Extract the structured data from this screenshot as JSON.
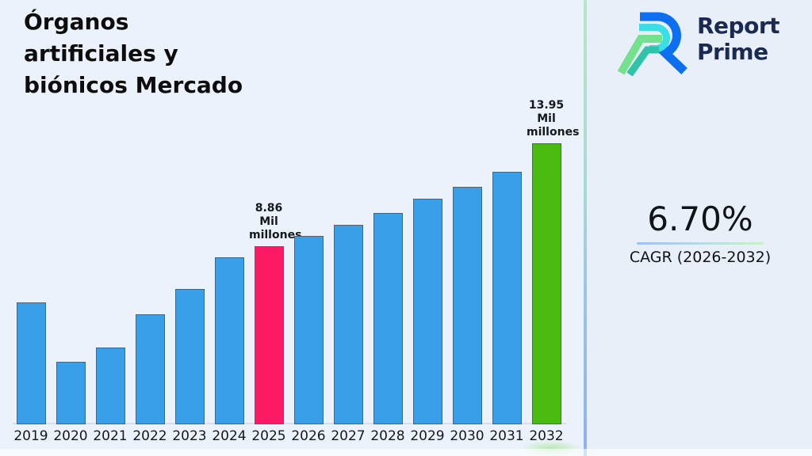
{
  "header": {
    "title": "Órganos artificiales y biónicos Mercado",
    "title_lines": [
      "Órganos",
      "artificiales y",
      "biónicos Mercado"
    ]
  },
  "brand": {
    "name_line1": "Report",
    "name_line2": "Prime",
    "logo_colors": {
      "blue": "#0C6FF0",
      "cyan": "#3BDEE6",
      "green": "#74E18E",
      "teal": "#2FC3A9",
      "text": "#1B2A52"
    }
  },
  "stats": {
    "cagr_value": "6.70%",
    "cagr_label": "CAGR (2026-2032)"
  },
  "chart_data": {
    "type": "bar",
    "title": "Órganos artificiales y biónicos Mercado",
    "unit": "Mil millones",
    "categories": [
      "2019",
      "2020",
      "2021",
      "2022",
      "2023",
      "2024",
      "2025",
      "2026",
      "2027",
      "2028",
      "2029",
      "2030",
      "2031",
      "2032"
    ],
    "values": [
      6.05,
      3.1,
      3.8,
      5.45,
      6.7,
      8.3,
      8.86,
      9.35,
      9.9,
      10.5,
      11.2,
      11.8,
      12.55,
      13.95
    ],
    "ylim": [
      0,
      14.3
    ],
    "xlabel": "",
    "ylabel": "",
    "grid": false,
    "legend": false,
    "bar_color_default": "#389FE8",
    "bar_border_color": "#57606B",
    "highlights": {
      "2025": "#FB1A63",
      "2032": "#4CBB11"
    },
    "annotations": [
      {
        "category": "2025",
        "lines": [
          "8.86",
          "Mil",
          "millones"
        ]
      },
      {
        "category": "2032",
        "lines": [
          "13.95",
          "Mil",
          "millones"
        ]
      }
    ]
  }
}
